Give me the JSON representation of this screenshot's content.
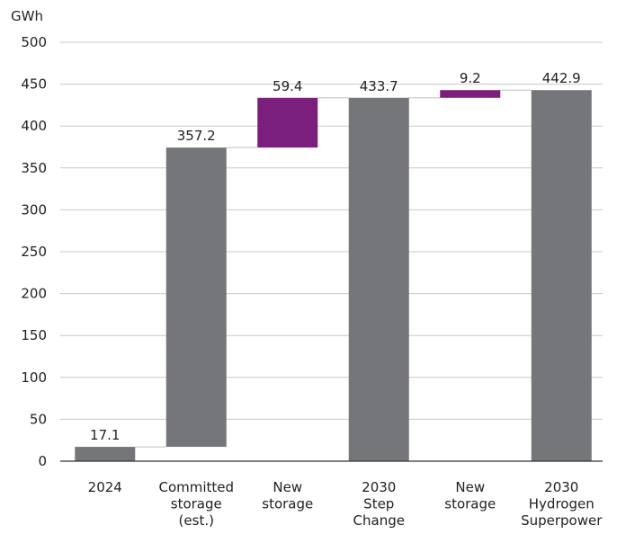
{
  "chart_data": {
    "type": "bar",
    "subtype": "waterfall",
    "ylabel": "GWh",
    "ylim": [
      0,
      500
    ],
    "yticks": [
      0,
      50,
      100,
      150,
      200,
      250,
      300,
      350,
      400,
      450,
      500
    ],
    "grid": true,
    "categories": [
      [
        "2024"
      ],
      [
        "Committed",
        "storage",
        "(est.)"
      ],
      [
        "New",
        "storage"
      ],
      [
        "2030",
        "Step",
        "Change"
      ],
      [
        "New",
        "storage"
      ],
      [
        "2030",
        "Hydrogen",
        "Superpower"
      ]
    ],
    "bars": [
      {
        "start": 0,
        "end": 17.1,
        "kind": "total",
        "label": "17.1"
      },
      {
        "start": 17.1,
        "end": 374.3,
        "kind": "total",
        "label": "357.2"
      },
      {
        "start": 374.3,
        "end": 433.7,
        "kind": "increment",
        "label": "59.4"
      },
      {
        "start": 0,
        "end": 433.7,
        "kind": "total",
        "label": "433.7"
      },
      {
        "start": 433.7,
        "end": 442.9,
        "kind": "increment",
        "label": "9.2"
      },
      {
        "start": 0,
        "end": 442.9,
        "kind": "total",
        "label": "442.9"
      }
    ],
    "colors": {
      "total": "#757679",
      "increment": "#7b1f7c",
      "grid": "#c8c8c8",
      "connector": "#d4d4d4",
      "axis": "#333333"
    }
  }
}
